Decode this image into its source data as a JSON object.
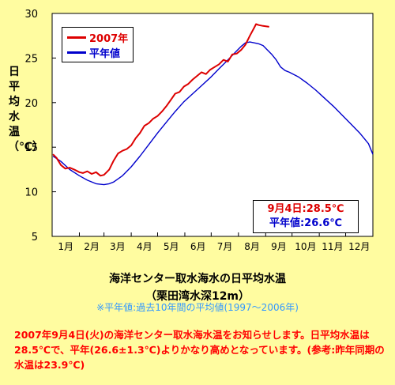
{
  "ylabel_chars": [
    "日",
    "平",
    "均",
    "水",
    "温",
    "（",
    "℃",
    "）"
  ],
  "title": "海洋センター取水海水の日平均水温",
  "subtitle": "（栗田湾水深12m）",
  "note": "※平年値:過去10年間の平均値(1997～2006年)",
  "description": "2007年9月4日(火)の海洋センター取水海水温をお知らせします。日平均水温は28.5℃で、平年(26.6±1.3℃)よりかなり高めとなっています。(参考:昨年同期の水温は23.9℃)",
  "callout": {
    "line1": "9月4日:28.5℃",
    "line2": "平年値:26.6℃"
  },
  "colors": {
    "background": "#fffca0",
    "plot_bg": "#ffffff",
    "series_2007": "#dd0000",
    "series_normal": "#0000cc",
    "callout_line1": "#dd0000",
    "callout_line2": "#0000cc"
  },
  "chart_data": {
    "type": "line",
    "title": "海洋センター取水海水の日平均水温",
    "ylabel": "日平均水温（℃）",
    "ylim": [
      5,
      30
    ],
    "yticks": [
      5,
      10,
      15,
      20,
      25,
      30
    ],
    "xlim": [
      0,
      365
    ],
    "months": [
      "1月",
      "2月",
      "3月",
      "4月",
      "5月",
      "6月",
      "7月",
      "8月",
      "9月",
      "10月",
      "11月",
      "12月"
    ],
    "grid": false,
    "legend_position": "top-left",
    "series": [
      {
        "name": "2007年",
        "x": [
          1,
          5,
          10,
          15,
          20,
          25,
          31,
          35,
          40,
          45,
          50,
          55,
          59,
          62,
          65,
          70,
          75,
          80,
          85,
          90,
          95,
          100,
          105,
          110,
          115,
          120,
          125,
          130,
          135,
          140,
          145,
          150,
          155,
          160,
          165,
          170,
          175,
          180,
          185,
          190,
          195,
          200,
          205,
          210,
          215,
          220,
          225,
          230,
          232,
          235,
          240,
          247
        ],
        "values": [
          14.2,
          13.8,
          13.0,
          12.6,
          12.7,
          12.5,
          12.2,
          12.1,
          12.3,
          12.0,
          12.2,
          11.8,
          11.9,
          12.2,
          12.5,
          13.5,
          14.3,
          14.6,
          14.8,
          15.2,
          16.0,
          16.6,
          17.4,
          17.7,
          18.2,
          18.5,
          19.0,
          19.6,
          20.3,
          21.0,
          21.2,
          21.8,
          22.1,
          22.6,
          23.0,
          23.4,
          23.2,
          23.7,
          24.0,
          24.3,
          24.8,
          24.6,
          25.4,
          25.5,
          25.9,
          26.5,
          27.5,
          28.4,
          28.8,
          28.7,
          28.6,
          28.5
        ]
      },
      {
        "name": "平年値",
        "x": [
          1,
          10,
          20,
          31,
          40,
          50,
          59,
          65,
          70,
          80,
          90,
          100,
          110,
          120,
          130,
          140,
          150,
          160,
          170,
          180,
          190,
          200,
          210,
          215,
          220,
          225,
          230,
          235,
          240,
          245,
          250,
          255,
          260,
          265,
          270,
          280,
          290,
          300,
          310,
          320,
          330,
          340,
          350,
          360,
          365
        ],
        "values": [
          14.0,
          13.4,
          12.5,
          11.8,
          11.3,
          10.9,
          10.8,
          10.9,
          11.1,
          11.8,
          12.8,
          14.0,
          15.3,
          16.6,
          17.8,
          19.0,
          20.1,
          21.0,
          21.9,
          22.8,
          23.8,
          24.8,
          25.8,
          26.3,
          26.7,
          26.8,
          26.7,
          26.6,
          26.4,
          25.9,
          25.4,
          24.8,
          24.0,
          23.6,
          23.4,
          22.9,
          22.2,
          21.4,
          20.5,
          19.6,
          18.6,
          17.6,
          16.6,
          15.4,
          14.2
        ]
      }
    ]
  }
}
